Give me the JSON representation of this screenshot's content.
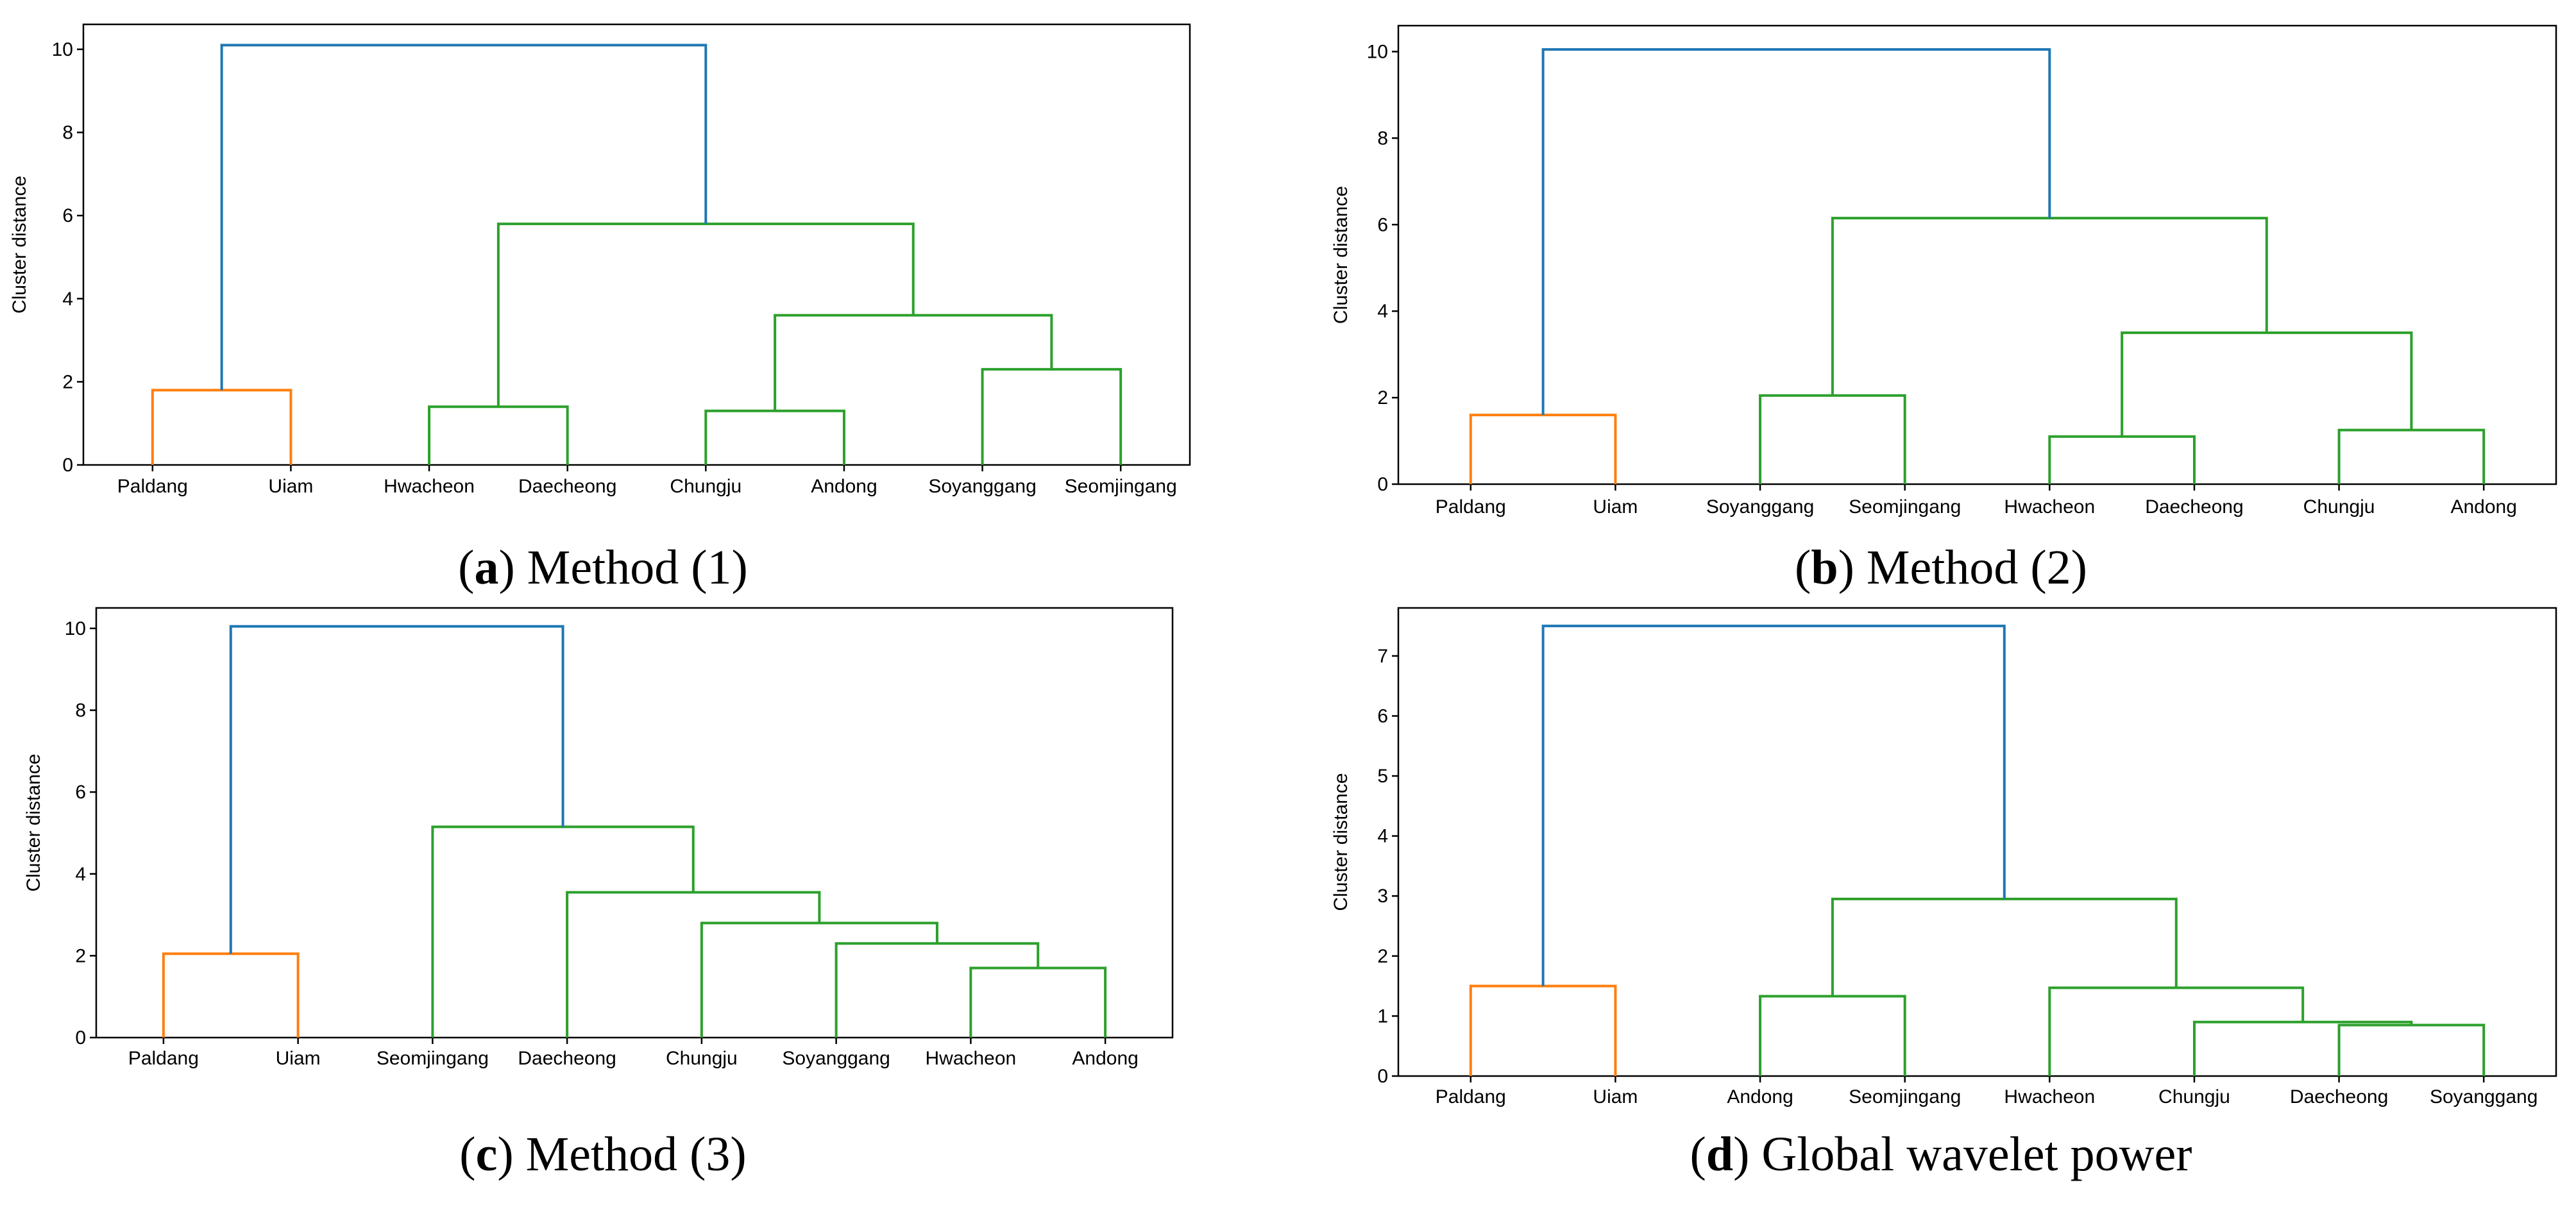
{
  "colors": {
    "root": "#1f77b4",
    "cluster1": "#ff7f0e",
    "cluster2": "#2ca02c",
    "axis": "#000000"
  },
  "chart_data": [
    {
      "type": "dendrogram",
      "ylabel": "Cluster distance",
      "ylim": [
        0,
        10.6
      ],
      "yticks": [
        0,
        2,
        4,
        6,
        8,
        10
      ],
      "caption_letter": "a",
      "caption_text": "Method (1)",
      "leaves": [
        "Paldang",
        "Uiam",
        "Hwacheon",
        "Daecheong",
        "Chungju",
        "Andong",
        "Soyanggang",
        "Seomjingang"
      ],
      "merges": [
        {
          "a": 0,
          "b": 1,
          "h": 1.8,
          "color": "cluster1"
        },
        {
          "a": 2,
          "b": 3,
          "h": 1.4,
          "color": "cluster2"
        },
        {
          "a": 4,
          "b": 5,
          "h": 1.3,
          "color": "cluster2"
        },
        {
          "a": 6,
          "b": 7,
          "h": 2.3,
          "color": "cluster2"
        },
        {
          "a": 10,
          "b": 11,
          "h": 3.6,
          "color": "cluster2"
        },
        {
          "a": 9,
          "b": 12,
          "h": 5.8,
          "color": "cluster2"
        },
        {
          "a": 8,
          "b": 13,
          "h": 10.1,
          "color": "root"
        }
      ]
    },
    {
      "type": "dendrogram",
      "ylabel": "Cluster distance",
      "ylim": [
        0,
        10.6
      ],
      "yticks": [
        0,
        2,
        4,
        6,
        8,
        10
      ],
      "caption_letter": "b",
      "caption_text": "Method (2)",
      "leaves": [
        "Paldang",
        "Uiam",
        "Soyanggang",
        "Seomjingang",
        "Hwacheon",
        "Daecheong",
        "Chungju",
        "Andong"
      ],
      "merges": [
        {
          "a": 0,
          "b": 1,
          "h": 1.6,
          "color": "cluster1"
        },
        {
          "a": 2,
          "b": 3,
          "h": 2.05,
          "color": "cluster2"
        },
        {
          "a": 4,
          "b": 5,
          "h": 1.1,
          "color": "cluster2"
        },
        {
          "a": 6,
          "b": 7,
          "h": 1.25,
          "color": "cluster2"
        },
        {
          "a": 10,
          "b": 11,
          "h": 3.5,
          "color": "cluster2"
        },
        {
          "a": 9,
          "b": 12,
          "h": 6.15,
          "color": "cluster2"
        },
        {
          "a": 8,
          "b": 13,
          "h": 10.05,
          "color": "root"
        }
      ]
    },
    {
      "type": "dendrogram",
      "ylabel": "Cluster distance",
      "ylim": [
        0,
        10.5
      ],
      "yticks": [
        0,
        2,
        4,
        6,
        8,
        10
      ],
      "caption_letter": "c",
      "caption_text": "Method (3)",
      "leaves": [
        "Paldang",
        "Uiam",
        "Seomjingang",
        "Daecheong",
        "Chungju",
        "Soyanggang",
        "Hwacheon",
        "Andong"
      ],
      "merges": [
        {
          "a": 0,
          "b": 1,
          "h": 2.05,
          "color": "cluster1"
        },
        {
          "a": 6,
          "b": 7,
          "h": 1.7,
          "color": "cluster2"
        },
        {
          "a": 5,
          "b": 9,
          "h": 2.3,
          "color": "cluster2"
        },
        {
          "a": 4,
          "b": 10,
          "h": 2.8,
          "color": "cluster2"
        },
        {
          "a": 3,
          "b": 11,
          "h": 3.55,
          "color": "cluster2"
        },
        {
          "a": 2,
          "b": 12,
          "h": 5.15,
          "color": "cluster2"
        },
        {
          "a": 8,
          "b": 13,
          "h": 10.05,
          "color": "root"
        }
      ]
    },
    {
      "type": "dendrogram",
      "ylabel": "Cluster distance",
      "ylim": [
        0,
        7.8
      ],
      "yticks": [
        0,
        1,
        2,
        3,
        4,
        5,
        6,
        7
      ],
      "caption_letter": "d",
      "caption_text": "Global wavelet power",
      "leaves": [
        "Paldang",
        "Uiam",
        "Andong",
        "Seomjingang",
        "Hwacheon",
        "Chungju",
        "Daecheong",
        "Soyanggang"
      ],
      "merges": [
        {
          "a": 0,
          "b": 1,
          "h": 1.5,
          "color": "cluster1"
        },
        {
          "a": 2,
          "b": 3,
          "h": 1.33,
          "color": "cluster2"
        },
        {
          "a": 6,
          "b": 7,
          "h": 0.85,
          "color": "cluster2"
        },
        {
          "a": 5,
          "b": 10,
          "h": 0.9,
          "color": "cluster2"
        },
        {
          "a": 4,
          "b": 11,
          "h": 1.47,
          "color": "cluster2"
        },
        {
          "a": 9,
          "b": 12,
          "h": 2.95,
          "color": "cluster2"
        },
        {
          "a": 8,
          "b": 13,
          "h": 7.5,
          "color": "root"
        }
      ]
    }
  ]
}
